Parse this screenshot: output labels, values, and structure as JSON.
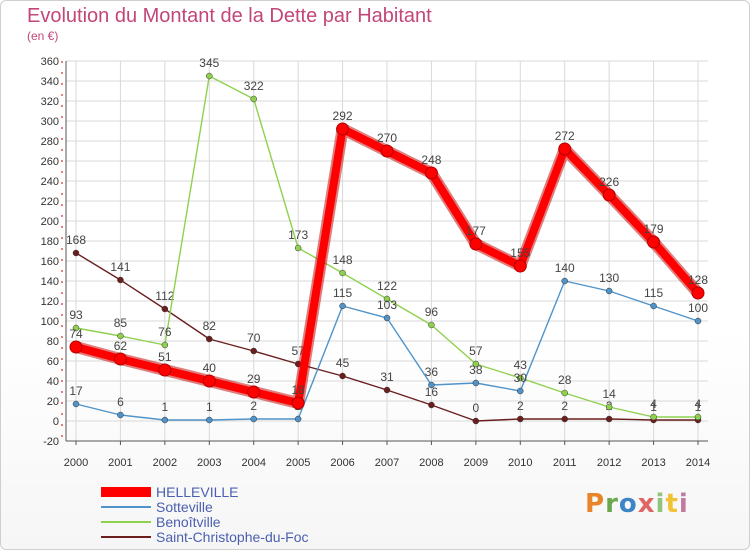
{
  "header": {
    "title": "Evolution du Montant de la Dette par Habitant",
    "subtitle": "(en €)"
  },
  "brand": {
    "text": "Proxiti",
    "colors": [
      "#e8842a",
      "#6aa84f",
      "#3d85c6",
      "#e06666",
      "#93c47d",
      "#f1c232",
      "#c27ba0"
    ]
  },
  "chart_data": {
    "type": "line",
    "x": [
      "2000",
      "2001",
      "2002",
      "2003",
      "2004",
      "2005",
      "2006",
      "2007",
      "2008",
      "2009",
      "2010",
      "2011",
      "2012",
      "2013",
      "2014"
    ],
    "ylim": [
      -20,
      360
    ],
    "yticks": [
      -20,
      0,
      20,
      40,
      60,
      80,
      100,
      120,
      140,
      160,
      180,
      200,
      220,
      240,
      260,
      280,
      300,
      320,
      340,
      360
    ],
    "grid": true,
    "legend": "bottom-left",
    "series": [
      {
        "name": "Saint-Christophe-du-Foc",
        "color": "#6b1e1e",
        "values": [
          168,
          141,
          112,
          82,
          70,
          57,
          45,
          31,
          16,
          0,
          2,
          2,
          2,
          1,
          1
        ],
        "labels": [
          "168",
          "141",
          "112",
          "82",
          "70",
          "57",
          "45",
          "31",
          "16",
          "0",
          "2",
          "2",
          "2",
          "1",
          "1"
        ]
      },
      {
        "name": "Benoîtville",
        "color": "#8fd14f",
        "values": [
          93,
          85,
          76,
          345,
          322,
          173,
          148,
          122,
          96,
          57,
          43,
          28,
          14,
          4,
          4
        ],
        "labels": [
          "93",
          "85",
          "76",
          "345",
          "322",
          "173",
          "148",
          "122",
          "96",
          "57",
          "43",
          "28",
          "14",
          "4",
          "4"
        ]
      },
      {
        "name": "Sotteville",
        "color": "#4f93c9",
        "values": [
          17,
          6,
          1,
          1,
          2,
          2,
          115,
          103,
          36,
          38,
          30,
          140,
          130,
          115,
          100
        ],
        "labels": [
          "17",
          "6",
          "1",
          "1",
          "2",
          "2",
          "115",
          "103",
          "36",
          "38",
          "30",
          "140",
          "130",
          "115",
          "100"
        ]
      },
      {
        "name": "HELLEVILLE",
        "color": "#ff0000",
        "values": [
          74,
          62,
          51,
          40,
          29,
          18,
          292,
          270,
          248,
          177,
          155,
          272,
          226,
          179,
          128
        ],
        "labels": [
          "74",
          "62",
          "51",
          "40",
          "29",
          "18",
          "292",
          "270",
          "248",
          "177",
          "155",
          "272",
          "226",
          "179",
          "128"
        ]
      }
    ]
  },
  "legend_order": [
    "HELLEVILLE",
    "Sotteville",
    "Benoîtville",
    "Saint-Christophe-du-Foc"
  ]
}
